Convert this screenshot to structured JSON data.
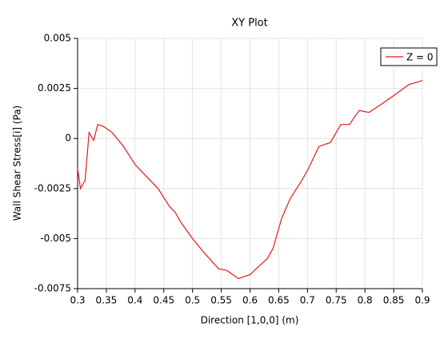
{
  "chart_data": {
    "type": "line",
    "title": "XY Plot",
    "x_label": "Direction [1,0,0] (m)",
    "y_label": "Wall Shear Stress[i] (Pa)",
    "x": [
      0.3,
      0.305,
      0.313,
      0.32,
      0.328,
      0.335,
      0.345,
      0.36,
      0.38,
      0.4,
      0.42,
      0.44,
      0.46,
      0.47,
      0.48,
      0.5,
      0.52,
      0.545,
      0.56,
      0.57,
      0.58,
      0.59,
      0.6,
      0.615,
      0.63,
      0.64,
      0.655,
      0.67,
      0.69,
      0.7,
      0.72,
      0.73,
      0.74,
      0.758,
      0.773,
      0.79,
      0.807,
      0.828,
      0.848,
      0.877,
      0.89,
      0.9
    ],
    "series": [
      {
        "name": "Z = 0",
        "color": "#e41a1c",
        "values": [
          -0.0015,
          -0.0025,
          -0.0021,
          0.0003,
          -0.0001,
          0.0007,
          0.0006,
          0.0003,
          -0.0004,
          -0.0013,
          -0.0019,
          -0.0025,
          -0.0034,
          -0.0037,
          -0.0042,
          -0.005,
          -0.0057,
          -0.0065,
          -0.0066,
          -0.0068,
          -0.007,
          -0.0069,
          -0.0068,
          -0.0064,
          -0.006,
          -0.0055,
          -0.004,
          -0.003,
          -0.0021,
          -0.0016,
          -0.0004,
          -0.0003,
          -0.0002,
          0.0007,
          0.0007,
          0.0014,
          0.0013,
          0.0017,
          0.0021,
          0.0027,
          0.0028,
          0.0029
        ]
      }
    ],
    "xlim": [
      0.3,
      0.9
    ],
    "xticks": [
      0.3,
      0.35,
      0.4,
      0.45,
      0.5,
      0.55,
      0.6,
      0.65,
      0.7,
      0.75,
      0.8,
      0.85,
      0.9
    ],
    "ylim": [
      -0.0075,
      0.005
    ],
    "yticks": [
      -0.0075,
      -0.005,
      -0.0025,
      0,
      0.0025,
      0.005
    ],
    "grid": true,
    "legend": "top-right"
  }
}
